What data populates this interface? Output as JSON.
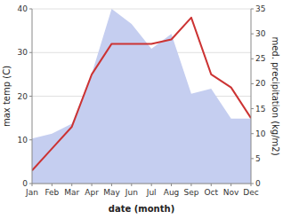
{
  "chart_data": {
    "type": "line",
    "xlabel": "date (month)",
    "ylabel": "max temp (C)",
    "y2label": "med. precipitation (kg/m2)",
    "categories": [
      "Jan",
      "Feb",
      "Mar",
      "Apr",
      "May",
      "Jun",
      "Jul",
      "Aug",
      "Sep",
      "Oct",
      "Nov",
      "Dec"
    ],
    "series": [
      {
        "type": "line",
        "color": "#cc3333",
        "values": [
          3,
          8,
          13,
          25,
          32,
          32,
          32,
          33,
          38,
          25,
          22,
          15
        ]
      },
      {
        "type": "area",
        "color": "#c5cef0",
        "axis": "y2",
        "values": [
          9,
          10,
          12,
          22,
          35,
          32,
          27,
          30,
          18,
          19,
          13,
          13
        ]
      }
    ],
    "ylim": [
      0,
      40
    ],
    "yticks": [
      0,
      10,
      20,
      30,
      40
    ],
    "y2lim": [
      0,
      35
    ],
    "y2ticks": [
      0,
      5,
      10,
      15,
      20,
      25,
      30,
      35
    ],
    "grid": true
  }
}
